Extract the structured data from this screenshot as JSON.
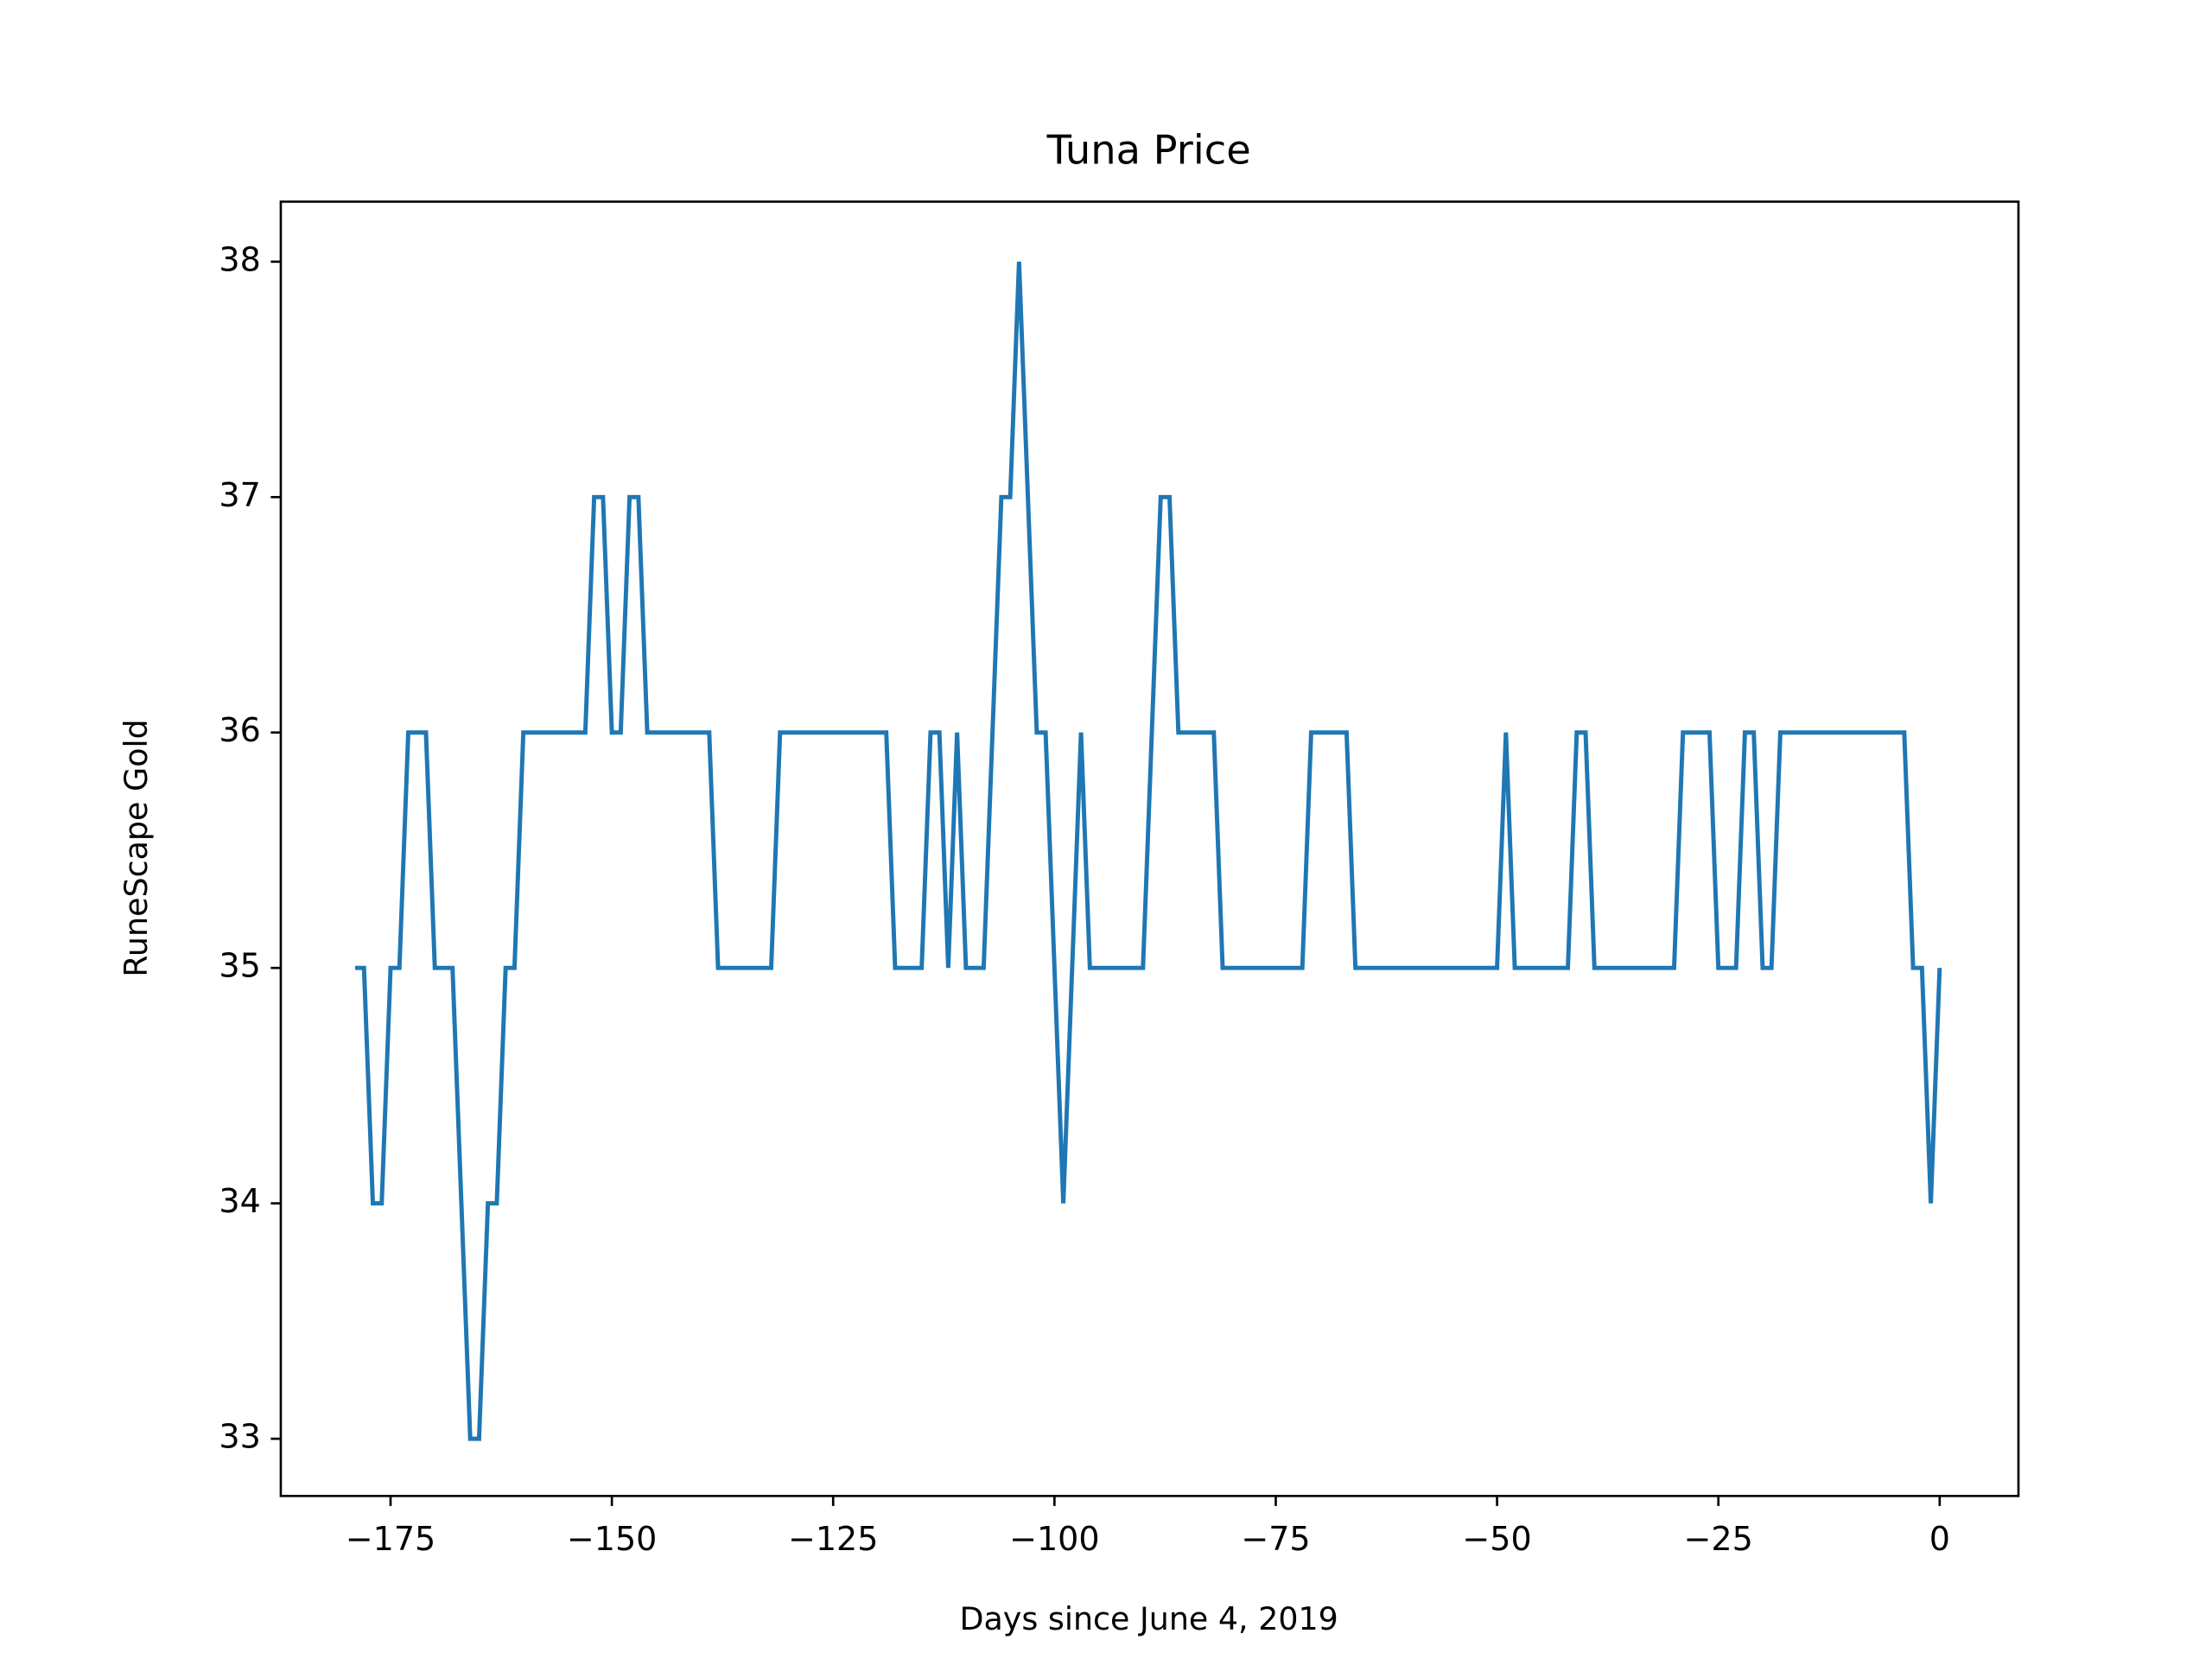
{
  "chart_data": {
    "type": "line",
    "title": "Tuna Price",
    "xlabel": "Days since June 4, 2019",
    "ylabel": "RuneScape Gold",
    "color": "#1f77b4",
    "x": [
      -179,
      -178,
      -177,
      -176,
      -175,
      -174,
      -173,
      -172,
      -171,
      -170,
      -169,
      -168,
      -167,
      -166,
      -165,
      -164,
      -163,
      -162,
      -161,
      -160,
      -159,
      -158,
      -157,
      -156,
      -155,
      -154,
      -153,
      -152,
      -151,
      -150,
      -149,
      -148,
      -147,
      -146,
      -145,
      -144,
      -143,
      -142,
      -141,
      -140,
      -139,
      -138,
      -137,
      -136,
      -135,
      -134,
      -133,
      -132,
      -131,
      -130,
      -129,
      -128,
      -127,
      -126,
      -125,
      -124,
      -123,
      -122,
      -121,
      -120,
      -119,
      -118,
      -117,
      -116,
      -115,
      -114,
      -113,
      -112,
      -111,
      -110,
      -109,
      -108,
      -107,
      -106,
      -105,
      -104,
      -103,
      -102,
      -101,
      -100,
      -99,
      -98,
      -97,
      -96,
      -95,
      -94,
      -93,
      -92,
      -91,
      -90,
      -89,
      -88,
      -87,
      -86,
      -85,
      -84,
      -83,
      -82,
      -81,
      -80,
      -79,
      -78,
      -77,
      -76,
      -75,
      -74,
      -73,
      -72,
      -71,
      -70,
      -69,
      -68,
      -67,
      -66,
      -65,
      -64,
      -63,
      -62,
      -61,
      -60,
      -59,
      -58,
      -57,
      -56,
      -55,
      -54,
      -53,
      -52,
      -51,
      -50,
      -49,
      -48,
      -47,
      -46,
      -45,
      -44,
      -43,
      -42,
      -41,
      -40,
      -39,
      -38,
      -37,
      -36,
      -35,
      -34,
      -33,
      -32,
      -31,
      -30,
      -29,
      -28,
      -27,
      -26,
      -25,
      -24,
      -23,
      -22,
      -21,
      -20,
      -19,
      -18,
      -17,
      -16,
      -15,
      -14,
      -13,
      -12,
      -11,
      -10,
      -9,
      -8,
      -7,
      -6,
      -5,
      -4,
      -3,
      -2,
      -1,
      0
    ],
    "values": [
      35,
      35,
      34,
      34,
      35,
      35,
      36,
      36,
      36,
      35,
      35,
      35,
      34,
      33,
      33,
      34,
      34,
      35,
      35,
      36,
      36,
      36,
      36,
      36,
      36,
      36,
      36,
      37,
      37,
      36,
      36,
      37,
      37,
      36,
      36,
      36,
      36,
      36,
      36,
      36,
      36,
      35,
      35,
      35,
      35,
      35,
      35,
      35,
      36,
      36,
      36,
      36,
      36,
      36,
      36,
      36,
      36,
      36,
      36,
      36,
      36,
      35,
      35,
      35,
      35,
      36,
      36,
      35,
      36,
      35,
      35,
      35,
      36,
      37,
      37,
      38,
      37,
      36,
      36,
      35,
      34,
      35,
      36,
      35,
      35,
      35,
      35,
      35,
      35,
      35,
      36,
      37,
      37,
      36,
      36,
      36,
      36,
      36,
      35,
      35,
      35,
      35,
      35,
      35,
      35,
      35,
      35,
      35,
      36,
      36,
      36,
      36,
      36,
      35,
      35,
      35,
      35,
      35,
      35,
      35,
      35,
      35,
      35,
      35,
      35,
      35,
      35,
      35,
      35,
      35,
      36,
      35,
      35,
      35,
      35,
      35,
      35,
      35,
      36,
      36,
      35,
      35,
      35,
      35,
      35,
      35,
      35,
      35,
      35,
      35,
      36,
      36,
      36,
      36,
      35,
      35,
      35,
      36,
      36,
      35,
      35,
      36,
      36,
      36,
      36,
      36,
      36,
      36,
      36,
      36,
      36,
      36,
      36,
      36,
      36,
      36,
      35,
      35,
      34,
      35
    ],
    "xlim": [
      -187.4,
      8.9
    ],
    "ylim": [
      32.757,
      38.255
    ],
    "xticks": [
      {
        "value": -175,
        "label": "−175"
      },
      {
        "value": -150,
        "label": "−150"
      },
      {
        "value": -125,
        "label": "−125"
      },
      {
        "value": -100,
        "label": "−100"
      },
      {
        "value": -75,
        "label": "−75"
      },
      {
        "value": -50,
        "label": "−50"
      },
      {
        "value": -25,
        "label": "−25"
      },
      0
    ],
    "yticks": [
      33,
      34,
      35,
      36,
      37,
      38
    ]
  }
}
